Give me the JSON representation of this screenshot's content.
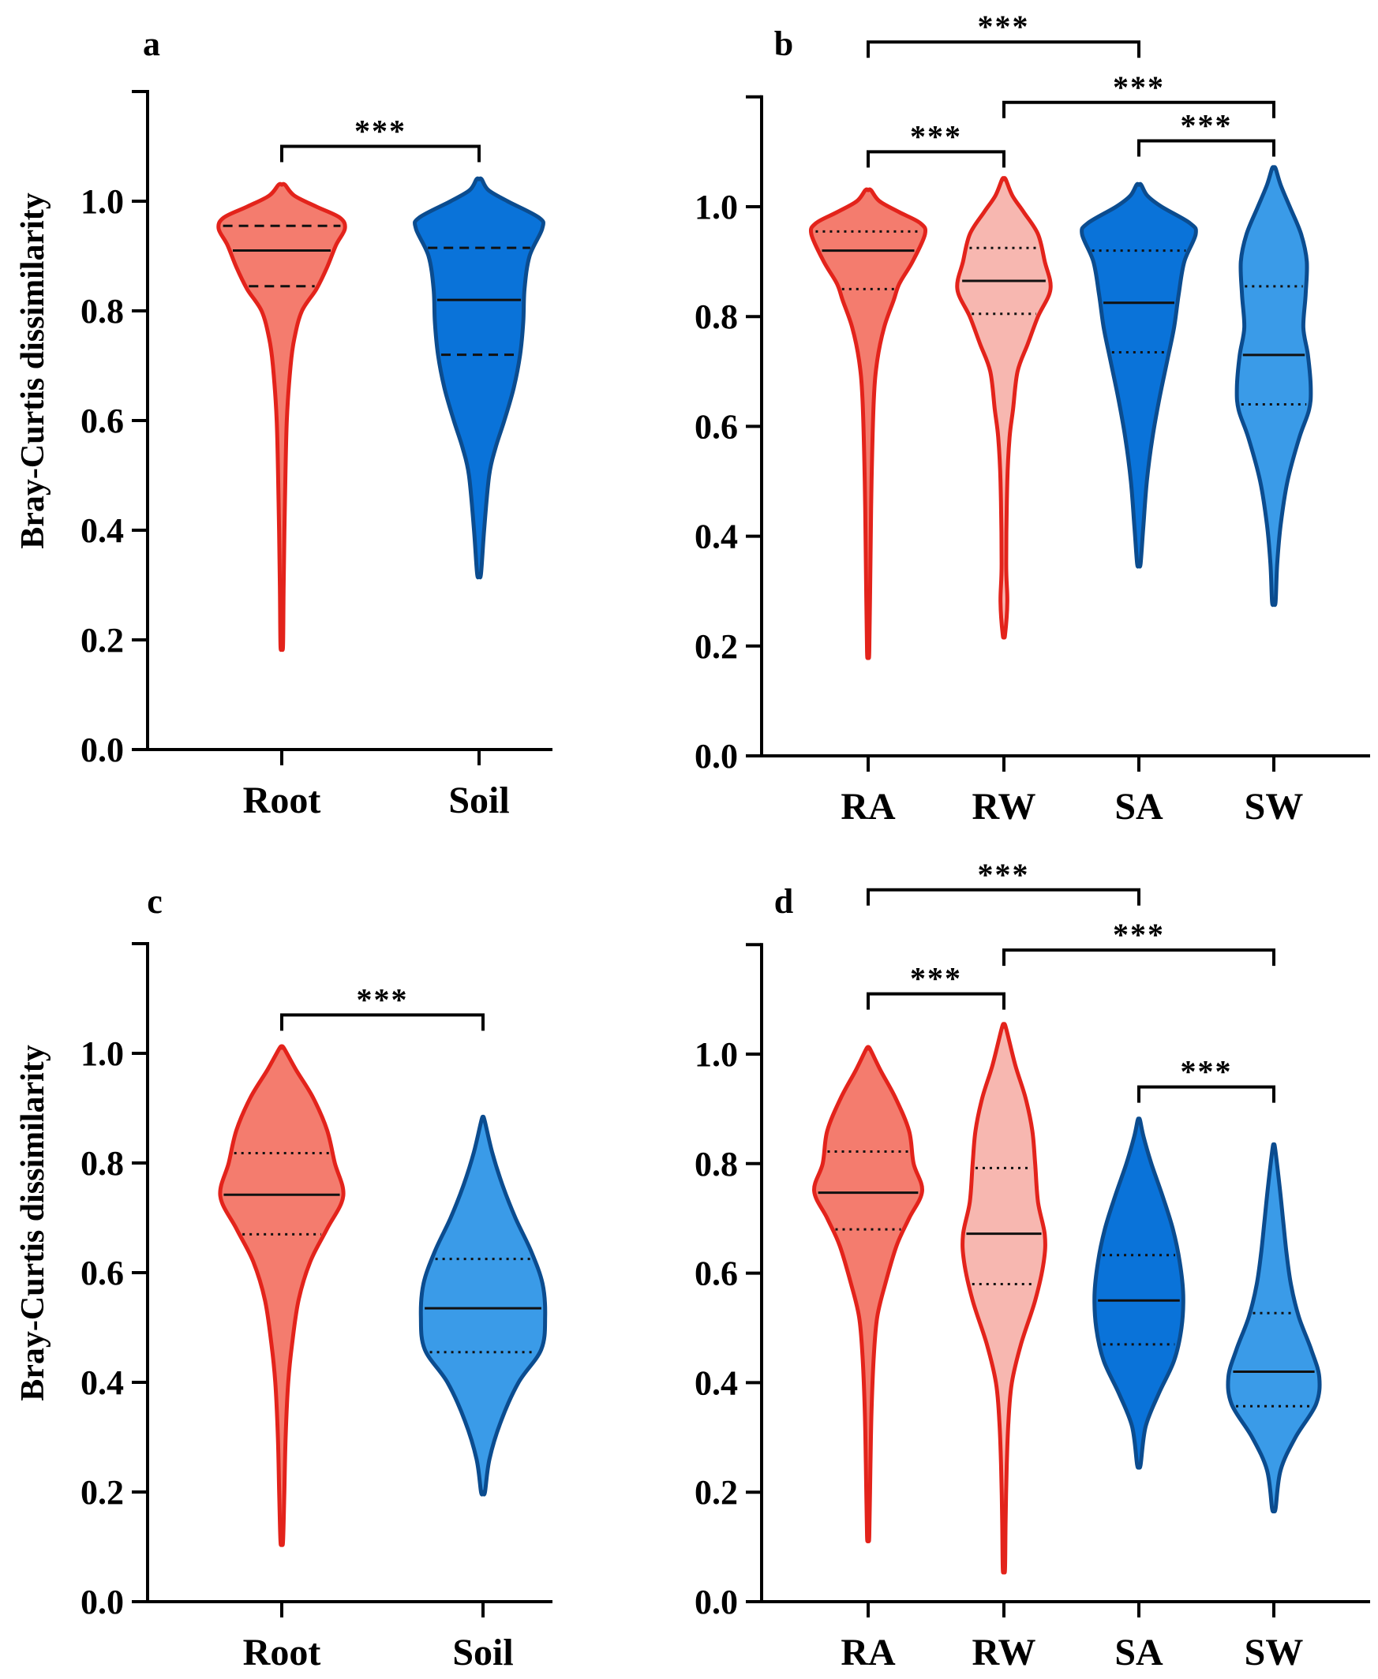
{
  "chart_data": [
    {
      "panel": "a",
      "type": "violin",
      "ylabel": "Bray-Curtis dissimilarity",
      "ylim": [
        0,
        1.2
      ],
      "yticks": [
        "0.0",
        "0.2",
        "0.4",
        "0.6",
        "0.8",
        "1.0"
      ],
      "categories": [
        "Root",
        "Soil"
      ],
      "quartile_style": "dashed",
      "violins": [
        {
          "category": "Root",
          "color": "#f47c6e",
          "edge": "#e3231b",
          "min": 0.19,
          "max": 1.03,
          "q1": 0.845,
          "median": 0.91,
          "q3": 0.955,
          "profile": [
            [
              0.19,
              0.02
            ],
            [
              0.3,
              0.03
            ],
            [
              0.45,
              0.05
            ],
            [
              0.6,
              0.08
            ],
            [
              0.7,
              0.14
            ],
            [
              0.75,
              0.2
            ],
            [
              0.8,
              0.32
            ],
            [
              0.84,
              0.55
            ],
            [
              0.88,
              0.72
            ],
            [
              0.92,
              0.86
            ],
            [
              0.95,
              1.0
            ],
            [
              0.97,
              0.92
            ],
            [
              0.99,
              0.55
            ],
            [
              1.01,
              0.2
            ],
            [
              1.03,
              0.05
            ]
          ]
        },
        {
          "category": "Soil",
          "color": "#0a73d9",
          "edge": "#0b4c8f",
          "min": 0.32,
          "max": 1.04,
          "q1": 0.72,
          "median": 0.82,
          "q3": 0.915,
          "profile": [
            [
              0.32,
              0.03
            ],
            [
              0.4,
              0.08
            ],
            [
              0.5,
              0.16
            ],
            [
              0.55,
              0.26
            ],
            [
              0.6,
              0.4
            ],
            [
              0.66,
              0.55
            ],
            [
              0.72,
              0.65
            ],
            [
              0.78,
              0.7
            ],
            [
              0.84,
              0.72
            ],
            [
              0.9,
              0.8
            ],
            [
              0.95,
              1.0
            ],
            [
              0.97,
              0.95
            ],
            [
              1.0,
              0.45
            ],
            [
              1.02,
              0.15
            ],
            [
              1.04,
              0.04
            ]
          ]
        }
      ],
      "significance": [
        {
          "from": "Root",
          "to": "Soil",
          "label": "***",
          "y": 1.1
        }
      ]
    },
    {
      "panel": "b",
      "type": "violin",
      "ylabel": "",
      "ylim": [
        0,
        1.2
      ],
      "yticks": [
        "0.0",
        "0.2",
        "0.4",
        "0.6",
        "0.8",
        "1.0"
      ],
      "categories": [
        "RA",
        "RW",
        "SA",
        "SW"
      ],
      "quartile_style": "dotted",
      "violins": [
        {
          "category": "RA",
          "color": "#f47c6e",
          "edge": "#e3231b",
          "min": 0.19,
          "max": 1.03,
          "q1": 0.85,
          "median": 0.92,
          "q3": 0.955,
          "profile": [
            [
              0.19,
              0.02
            ],
            [
              0.35,
              0.04
            ],
            [
              0.5,
              0.06
            ],
            [
              0.65,
              0.1
            ],
            [
              0.72,
              0.16
            ],
            [
              0.78,
              0.28
            ],
            [
              0.83,
              0.45
            ],
            [
              0.86,
              0.55
            ],
            [
              0.9,
              0.78
            ],
            [
              0.95,
              1.0
            ],
            [
              0.97,
              0.92
            ],
            [
              0.99,
              0.55
            ],
            [
              1.01,
              0.2
            ],
            [
              1.03,
              0.05
            ]
          ]
        },
        {
          "category": "RW",
          "color": "#f7b7b0",
          "edge": "#e3231b",
          "min": 0.22,
          "max": 1.05,
          "q1": 0.805,
          "median": 0.865,
          "q3": 0.925,
          "profile": [
            [
              0.22,
              0.02
            ],
            [
              0.28,
              0.06
            ],
            [
              0.35,
              0.04
            ],
            [
              0.5,
              0.06
            ],
            [
              0.58,
              0.1
            ],
            [
              0.63,
              0.16
            ],
            [
              0.7,
              0.24
            ],
            [
              0.75,
              0.42
            ],
            [
              0.8,
              0.6
            ],
            [
              0.85,
              0.82
            ],
            [
              0.9,
              0.72
            ],
            [
              0.95,
              0.6
            ],
            [
              0.99,
              0.35
            ],
            [
              1.02,
              0.15
            ],
            [
              1.05,
              0.03
            ]
          ]
        },
        {
          "category": "SA",
          "color": "#0a73d9",
          "edge": "#0b4c8f",
          "min": 0.35,
          "max": 1.04,
          "q1": 0.735,
          "median": 0.825,
          "q3": 0.92,
          "profile": [
            [
              0.35,
              0.03
            ],
            [
              0.42,
              0.08
            ],
            [
              0.5,
              0.14
            ],
            [
              0.58,
              0.24
            ],
            [
              0.65,
              0.36
            ],
            [
              0.72,
              0.5
            ],
            [
              0.78,
              0.62
            ],
            [
              0.84,
              0.7
            ],
            [
              0.9,
              0.8
            ],
            [
              0.95,
              1.0
            ],
            [
              0.97,
              0.9
            ],
            [
              1.0,
              0.4
            ],
            [
              1.02,
              0.15
            ],
            [
              1.04,
              0.04
            ]
          ]
        },
        {
          "category": "SW",
          "color": "#3a9be8",
          "edge": "#0b4c8f",
          "min": 0.28,
          "max": 1.07,
          "q1": 0.64,
          "median": 0.73,
          "q3": 0.855,
          "profile": [
            [
              0.28,
              0.03
            ],
            [
              0.35,
              0.06
            ],
            [
              0.42,
              0.12
            ],
            [
              0.5,
              0.24
            ],
            [
              0.58,
              0.45
            ],
            [
              0.63,
              0.62
            ],
            [
              0.67,
              0.65
            ],
            [
              0.73,
              0.6
            ],
            [
              0.78,
              0.52
            ],
            [
              0.84,
              0.56
            ],
            [
              0.9,
              0.58
            ],
            [
              0.95,
              0.48
            ],
            [
              1.0,
              0.28
            ],
            [
              1.04,
              0.12
            ],
            [
              1.07,
              0.03
            ]
          ]
        }
      ],
      "significance": [
        {
          "from": "RA",
          "to": "SA",
          "label": "***",
          "y": 1.3
        },
        {
          "from": "RW",
          "to": "SW",
          "label": "***",
          "y": 1.19
        },
        {
          "from": "SA",
          "to": "SW",
          "label": "***",
          "y": 1.12
        },
        {
          "from": "RA",
          "to": "RW",
          "label": "***",
          "y": 1.1
        }
      ]
    },
    {
      "panel": "c",
      "type": "violin",
      "ylabel": "Bray-Curtis dissimilarity",
      "ylim": [
        0,
        1.2
      ],
      "yticks": [
        "0.0",
        "0.2",
        "0.4",
        "0.6",
        "0.8",
        "1.0"
      ],
      "categories": [
        "Root",
        "Soil"
      ],
      "quartile_style": "dotted",
      "violins": [
        {
          "category": "Root",
          "color": "#f47c6e",
          "edge": "#e3231b",
          "min": 0.11,
          "max": 1.01,
          "q1": 0.67,
          "median": 0.742,
          "q3": 0.818,
          "profile": [
            [
              0.11,
              0.02
            ],
            [
              0.2,
              0.04
            ],
            [
              0.3,
              0.06
            ],
            [
              0.4,
              0.1
            ],
            [
              0.47,
              0.16
            ],
            [
              0.55,
              0.26
            ],
            [
              0.62,
              0.44
            ],
            [
              0.68,
              0.7
            ],
            [
              0.74,
              0.95
            ],
            [
              0.8,
              0.82
            ],
            [
              0.86,
              0.7
            ],
            [
              0.92,
              0.48
            ],
            [
              0.97,
              0.22
            ],
            [
              1.01,
              0.03
            ]
          ]
        },
        {
          "category": "Soil",
          "color": "#3a9be8",
          "edge": "#0b4c8f",
          "min": 0.2,
          "max": 0.88,
          "q1": 0.455,
          "median": 0.535,
          "q3": 0.625,
          "profile": [
            [
              0.2,
              0.03
            ],
            [
              0.26,
              0.1
            ],
            [
              0.33,
              0.28
            ],
            [
              0.4,
              0.55
            ],
            [
              0.46,
              0.9
            ],
            [
              0.52,
              0.96
            ],
            [
              0.58,
              0.92
            ],
            [
              0.64,
              0.74
            ],
            [
              0.7,
              0.5
            ],
            [
              0.76,
              0.3
            ],
            [
              0.82,
              0.14
            ],
            [
              0.88,
              0.02
            ]
          ]
        }
      ],
      "significance": [
        {
          "from": "Root",
          "to": "Soil",
          "label": "***",
          "y": 1.07
        }
      ]
    },
    {
      "panel": "d",
      "type": "violin",
      "ylabel": "",
      "ylim": [
        0,
        1.2
      ],
      "yticks": [
        "0.0",
        "0.2",
        "0.4",
        "0.6",
        "0.8",
        "1.0"
      ],
      "categories": [
        "RA",
        "RW",
        "SA",
        "SW"
      ],
      "quartile_style": "dotted",
      "violins": [
        {
          "category": "RA",
          "color": "#f47c6e",
          "edge": "#e3231b",
          "min": 0.12,
          "max": 1.01,
          "q1": 0.68,
          "median": 0.747,
          "q3": 0.822,
          "profile": [
            [
              0.12,
              0.02
            ],
            [
              0.25,
              0.04
            ],
            [
              0.35,
              0.06
            ],
            [
              0.45,
              0.1
            ],
            [
              0.52,
              0.16
            ],
            [
              0.58,
              0.3
            ],
            [
              0.65,
              0.5
            ],
            [
              0.7,
              0.72
            ],
            [
              0.75,
              0.95
            ],
            [
              0.8,
              0.8
            ],
            [
              0.86,
              0.72
            ],
            [
              0.92,
              0.48
            ],
            [
              0.97,
              0.22
            ],
            [
              1.01,
              0.03
            ]
          ]
        },
        {
          "category": "RW",
          "color": "#f7b7b0",
          "edge": "#e3231b",
          "min": 0.06,
          "max": 1.05,
          "q1": 0.58,
          "median": 0.672,
          "q3": 0.792,
          "profile": [
            [
              0.06,
              0.02
            ],
            [
              0.15,
              0.03
            ],
            [
              0.25,
              0.05
            ],
            [
              0.33,
              0.08
            ],
            [
              0.4,
              0.14
            ],
            [
              0.47,
              0.3
            ],
            [
              0.55,
              0.55
            ],
            [
              0.62,
              0.7
            ],
            [
              0.67,
              0.72
            ],
            [
              0.73,
              0.6
            ],
            [
              0.8,
              0.55
            ],
            [
              0.86,
              0.5
            ],
            [
              0.92,
              0.38
            ],
            [
              0.98,
              0.2
            ],
            [
              1.05,
              0.03
            ]
          ]
        },
        {
          "category": "SA",
          "color": "#0a73d9",
          "edge": "#0b4c8f",
          "min": 0.25,
          "max": 0.88,
          "q1": 0.47,
          "median": 0.55,
          "q3": 0.633,
          "profile": [
            [
              0.25,
              0.03
            ],
            [
              0.32,
              0.12
            ],
            [
              0.38,
              0.35
            ],
            [
              0.44,
              0.62
            ],
            [
              0.5,
              0.75
            ],
            [
              0.56,
              0.78
            ],
            [
              0.62,
              0.72
            ],
            [
              0.68,
              0.6
            ],
            [
              0.74,
              0.42
            ],
            [
              0.8,
              0.22
            ],
            [
              0.85,
              0.08
            ],
            [
              0.88,
              0.02
            ]
          ]
        },
        {
          "category": "SW",
          "color": "#3a9be8",
          "edge": "#0b4c8f",
          "min": 0.17,
          "max": 0.83,
          "q1": 0.357,
          "median": 0.42,
          "q3": 0.527,
          "profile": [
            [
              0.17,
              0.03
            ],
            [
              0.24,
              0.12
            ],
            [
              0.3,
              0.38
            ],
            [
              0.36,
              0.74
            ],
            [
              0.41,
              0.8
            ],
            [
              0.46,
              0.66
            ],
            [
              0.52,
              0.44
            ],
            [
              0.58,
              0.3
            ],
            [
              0.64,
              0.22
            ],
            [
              0.7,
              0.16
            ],
            [
              0.76,
              0.1
            ],
            [
              0.83,
              0.02
            ]
          ]
        }
      ],
      "significance": [
        {
          "from": "RA",
          "to": "SA",
          "label": "***",
          "y": 1.3
        },
        {
          "from": "RW",
          "to": "SW",
          "label": "***",
          "y": 1.19
        },
        {
          "from": "RA",
          "to": "RW",
          "label": "***",
          "y": 1.11
        },
        {
          "from": "SA",
          "to": "SW",
          "label": "***",
          "y": 0.94
        }
      ]
    }
  ]
}
